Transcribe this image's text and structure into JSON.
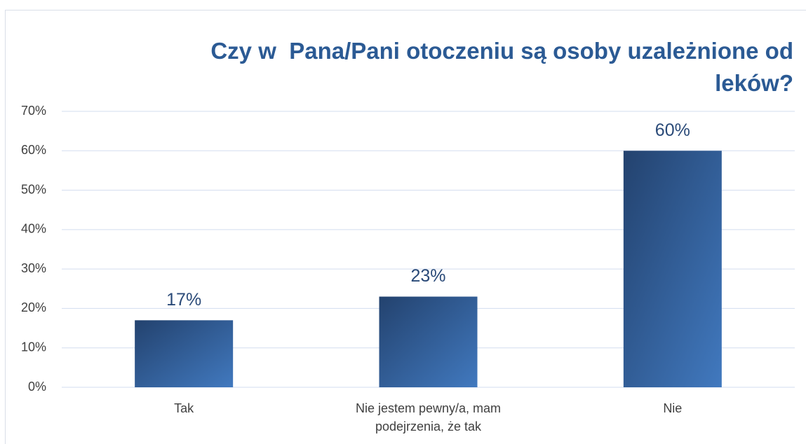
{
  "chart_data": {
    "type": "bar",
    "title": "Czy w  Pana/Pani otoczeniu są osoby uzależnione od leków?",
    "categories": [
      "Tak",
      "Nie jestem pewny/a, mam podejrzenia, że tak",
      "Nie"
    ],
    "values": [
      17,
      23,
      60
    ],
    "value_labels": [
      "17%",
      "23%",
      "60%"
    ],
    "colors": [
      "#23426e",
      "#4179bf"
    ],
    "ylim": [
      0,
      70
    ],
    "yticks": [
      {
        "value": 0,
        "label": "0%"
      },
      {
        "value": 10,
        "label": "10%"
      },
      {
        "value": 20,
        "label": "20%"
      },
      {
        "value": 30,
        "label": "30%"
      },
      {
        "value": 40,
        "label": "40%"
      },
      {
        "value": 50,
        "label": "50%"
      },
      {
        "value": 60,
        "label": "60%"
      },
      {
        "value": 70,
        "label": "70%"
      }
    ],
    "grid": true
  }
}
